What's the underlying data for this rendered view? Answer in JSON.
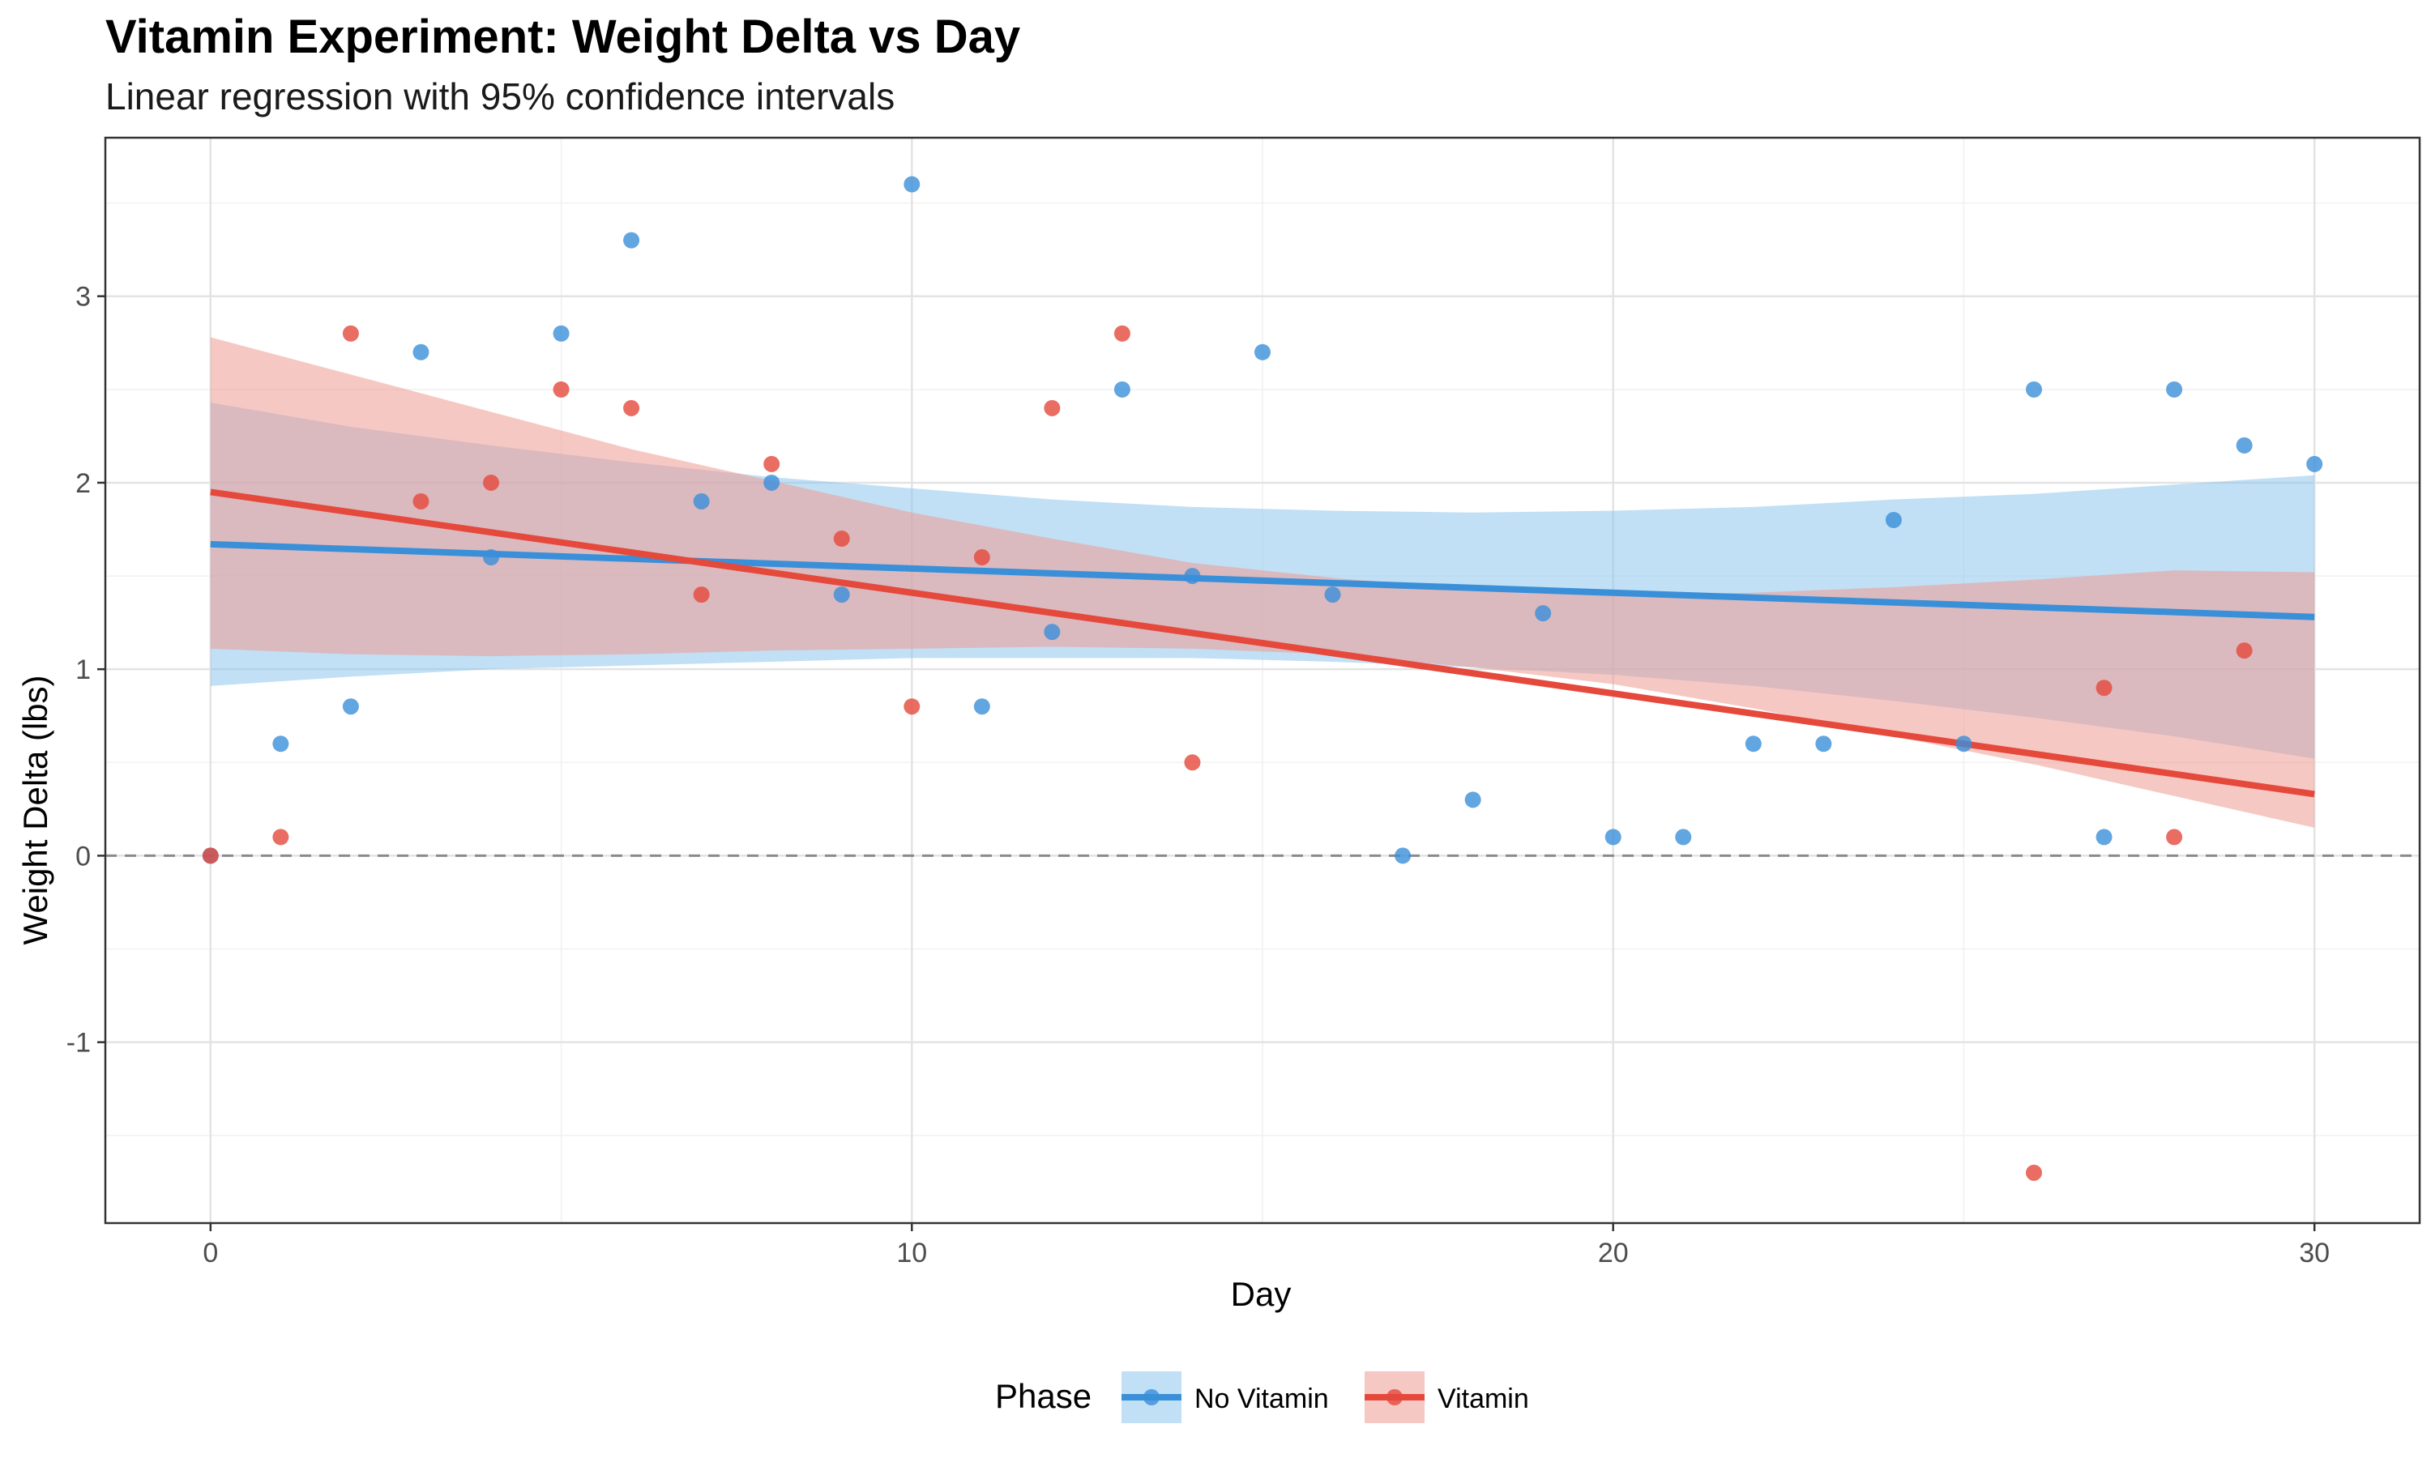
{
  "chart_data": {
    "type": "scatter",
    "title": "Vitamin Experiment: Weight Delta vs Day",
    "subtitle": "Linear regression with 95% confidence intervals",
    "xlabel": "Day",
    "ylabel": "Weight Delta (lbs)",
    "xlim": [
      -1.5,
      31.5
    ],
    "ylim": [
      -1.97,
      3.85
    ],
    "x_ticks": [
      0,
      10,
      20,
      30
    ],
    "y_ticks": [
      -1,
      0,
      1,
      2,
      3
    ],
    "grid": true,
    "reference_line": {
      "y": 0,
      "style": "dashed"
    },
    "legend": {
      "title": "Phase",
      "position": "bottom"
    },
    "series": [
      {
        "name": "No Vitamin",
        "color": "#3a8fd9",
        "points": [
          [
            0,
            0.0
          ],
          [
            1,
            0.6
          ],
          [
            2,
            0.8
          ],
          [
            3,
            2.7
          ],
          [
            4,
            1.6
          ],
          [
            5,
            2.8
          ],
          [
            6,
            3.3
          ],
          [
            7,
            1.9
          ],
          [
            8,
            2.0
          ],
          [
            9,
            1.4
          ],
          [
            10,
            3.6
          ],
          [
            11,
            0.8
          ],
          [
            12,
            1.2
          ],
          [
            13,
            2.5
          ],
          [
            14,
            1.5
          ],
          [
            15,
            2.7
          ],
          [
            16,
            1.4
          ],
          [
            17,
            0.0
          ],
          [
            18,
            0.3
          ],
          [
            19,
            1.3
          ],
          [
            20,
            0.1
          ],
          [
            21,
            0.1
          ],
          [
            22,
            0.6
          ],
          [
            23,
            0.6
          ],
          [
            24,
            1.8
          ],
          [
            25,
            0.6
          ],
          [
            26,
            2.5
          ],
          [
            27,
            0.1
          ],
          [
            28,
            2.5
          ],
          [
            29,
            2.2
          ],
          [
            30,
            2.1
          ]
        ],
        "fit": {
          "x": [
            0,
            30
          ],
          "y": [
            1.67,
            1.28
          ]
        },
        "ci": {
          "x": [
            0,
            2,
            4,
            6,
            8,
            10,
            12,
            14,
            16,
            18,
            20,
            22,
            24,
            26,
            28,
            30
          ],
          "upper": [
            2.43,
            2.3,
            2.2,
            2.11,
            2.03,
            1.97,
            1.91,
            1.87,
            1.85,
            1.84,
            1.85,
            1.87,
            1.91,
            1.94,
            1.99,
            2.04
          ],
          "lower": [
            0.91,
            0.96,
            1.0,
            1.02,
            1.04,
            1.06,
            1.06,
            1.06,
            1.04,
            1.01,
            0.97,
            0.91,
            0.83,
            0.74,
            0.64,
            0.52
          ]
        }
      },
      {
        "name": "Vitamin",
        "color": "#e5493c",
        "points": [
          [
            0,
            0.0
          ],
          [
            1,
            0.1
          ],
          [
            2,
            2.8
          ],
          [
            3,
            1.9
          ],
          [
            4,
            2.0
          ],
          [
            5,
            2.5
          ],
          [
            6,
            2.4
          ],
          [
            7,
            1.4
          ],
          [
            8,
            2.1
          ],
          [
            9,
            1.7
          ],
          [
            10,
            0.8
          ],
          [
            11,
            1.6
          ],
          [
            12,
            2.4
          ],
          [
            13,
            2.8
          ],
          [
            14,
            0.5
          ],
          [
            26,
            -1.7
          ],
          [
            27,
            0.9
          ],
          [
            28,
            0.1
          ],
          [
            29,
            1.1
          ]
        ],
        "fit": {
          "x": [
            0,
            30
          ],
          "y": [
            1.95,
            0.33
          ]
        },
        "ci": {
          "x": [
            0,
            2,
            4,
            6,
            8,
            10,
            12,
            14,
            16,
            18,
            20,
            22,
            24,
            26,
            28,
            30
          ],
          "upper": [
            2.78,
            2.58,
            2.38,
            2.18,
            2.01,
            1.84,
            1.7,
            1.57,
            1.49,
            1.43,
            1.4,
            1.41,
            1.44,
            1.48,
            1.53,
            1.52
          ],
          "lower": [
            1.11,
            1.08,
            1.07,
            1.08,
            1.1,
            1.11,
            1.12,
            1.11,
            1.08,
            1.01,
            0.92,
            0.79,
            0.64,
            0.49,
            0.32,
            0.15
          ]
        }
      }
    ]
  }
}
